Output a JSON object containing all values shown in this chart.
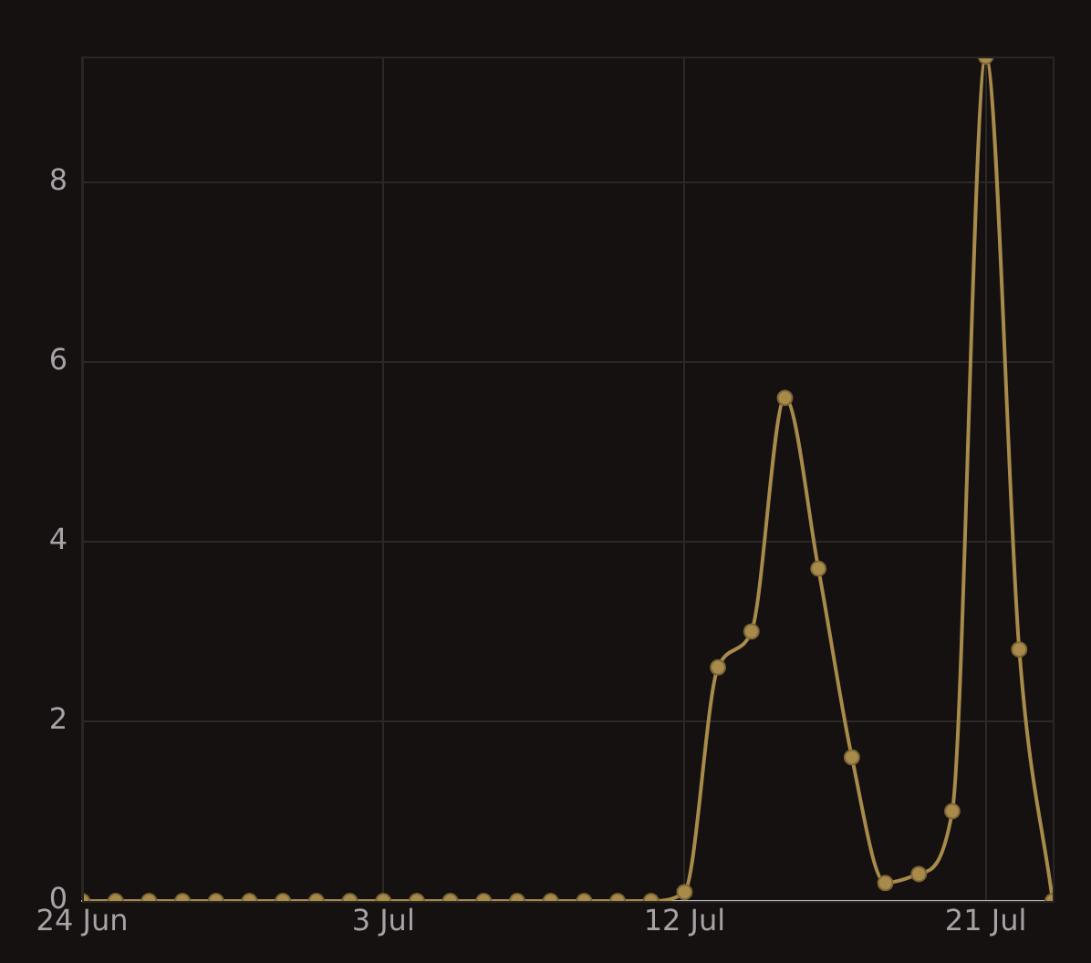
{
  "chart_data": {
    "type": "line",
    "x": [
      "--06-24",
      "--06-25",
      "--06-26",
      "--06-27",
      "--06-28",
      "--06-29",
      "--06-30",
      "--07-01",
      "--07-02",
      "--07-03",
      "--07-04",
      "--07-05",
      "--07-06",
      "--07-07",
      "--07-08",
      "--07-09",
      "--07-10",
      "--07-11",
      "--07-12",
      "--07-13",
      "--07-14",
      "--07-15",
      "--07-16",
      "--07-17",
      "--07-18",
      "--07-19",
      "--07-20",
      "--07-21",
      "--07-22",
      "--07-23"
    ],
    "series": [
      {
        "color": "#a88a4a",
        "values": [
          0,
          0,
          0,
          0,
          0,
          0,
          0,
          0,
          0,
          0,
          0,
          0,
          0,
          0,
          0,
          0,
          0,
          0,
          0.1,
          2.6,
          3.0,
          5.6,
          3.7,
          1.6,
          0.2,
          0.3,
          1.0,
          9.4,
          2.8,
          0
        ]
      }
    ],
    "xlim": [
      "--06-24",
      "--07-23"
    ],
    "xticks": [
      {
        "value": "--06-24",
        "label": "24 Jun"
      },
      {
        "value": "--07-03",
        "label": "3 Jul"
      },
      {
        "value": "--07-12",
        "label": "12 Jul"
      },
      {
        "value": "--07-21",
        "label": "21 Jul"
      }
    ],
    "ylim": [
      0,
      9.4
    ],
    "yticks": [
      0,
      2,
      4,
      6,
      8
    ],
    "grid": true,
    "legend": false,
    "marker": "circle",
    "line_style": "solid"
  }
}
